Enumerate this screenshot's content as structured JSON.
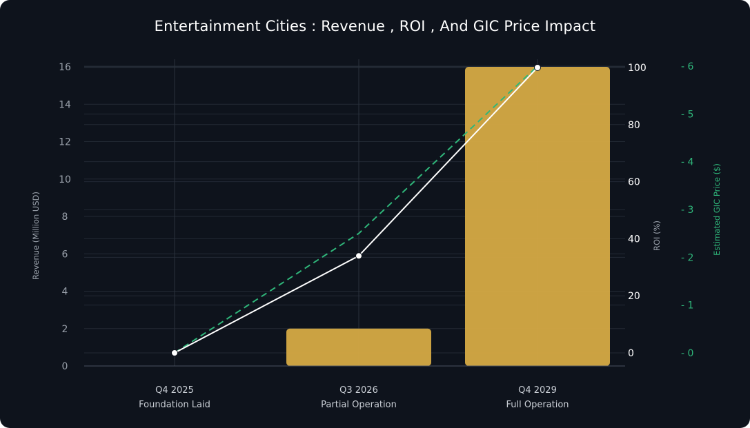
{
  "chart_data": {
    "type": "bar",
    "title": "Entertainment Cities : Revenue , ROI , And GIC Price Impact",
    "categories": [
      "Q4 2025",
      "Q3 2026",
      "Q4 2029"
    ],
    "category_sublabels": [
      "Foundation Laid",
      "Partial Operation",
      "Full Operation"
    ],
    "series": [
      {
        "name": "Revenue",
        "type": "bar",
        "axis": "left",
        "values": [
          0,
          2,
          16
        ],
        "color": "#d6aa45"
      },
      {
        "name": "ROI",
        "type": "line",
        "axis": "right",
        "values": [
          0,
          34,
          100
        ],
        "color": "#ffffff"
      },
      {
        "name": "GIC Price",
        "type": "line",
        "axis": "right2",
        "dashed": true,
        "values": [
          0,
          2.5,
          6
        ],
        "color": "#2fb67a"
      }
    ],
    "axes": {
      "left": {
        "label": "Revenue (Million USD)",
        "ylim": [
          0,
          16
        ],
        "ticks": [
          "0",
          "2",
          "4",
          "6",
          "8",
          "10",
          "12",
          "14",
          "16"
        ]
      },
      "right": {
        "label": "ROI (%)",
        "ylim": [
          0,
          100
        ],
        "ticks": [
          "0",
          "20",
          "40",
          "60",
          "80",
          "100"
        ]
      },
      "right2": {
        "label": "Estimated GIC Price ($)",
        "ylim": [
          0,
          6
        ],
        "ticks": [
          "- 0",
          "- 1",
          "- 2",
          "- 3",
          "- 4",
          "- 5",
          "- 6"
        ]
      }
    },
    "grid": true
  }
}
